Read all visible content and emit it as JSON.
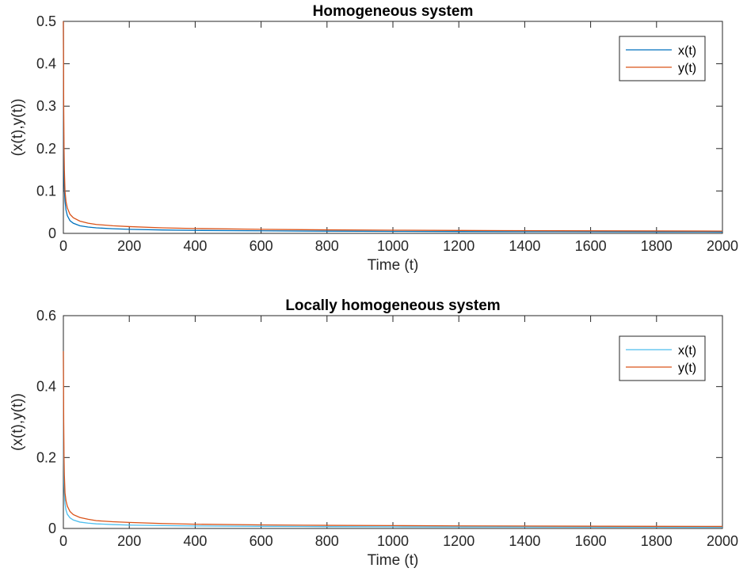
{
  "chart_data": [
    {
      "type": "line",
      "title": "Homogeneous system",
      "xlabel": "Time (t)",
      "ylabel": "(x(t),y(t))",
      "xlim": [
        0,
        2000
      ],
      "ylim": [
        0,
        0.5
      ],
      "xticks": [
        "0",
        "200",
        "400",
        "600",
        "800",
        "1000",
        "1200",
        "1400",
        "1600",
        "1800",
        "2000"
      ],
      "yticks": [
        "0",
        "0.1",
        "0.2",
        "0.3",
        "0.4",
        "0.5"
      ],
      "grid": false,
      "legend_position": "top-right",
      "series": [
        {
          "name": "x(t)",
          "color": "#0072BD",
          "x": [
            0,
            1,
            2,
            3,
            5,
            8,
            12,
            20,
            30,
            50,
            75,
            100,
            150,
            200,
            300,
            400,
            600,
            800,
            1000,
            1200,
            1500,
            1800,
            2000
          ],
          "y": [
            0.5,
            0.22,
            0.14,
            0.105,
            0.075,
            0.055,
            0.042,
            0.03,
            0.024,
            0.018,
            0.015,
            0.013,
            0.011,
            0.0095,
            0.008,
            0.007,
            0.006,
            0.0052,
            0.0047,
            0.0043,
            0.0039,
            0.0036,
            0.0034
          ]
        },
        {
          "name": "y(t)",
          "color": "#D95319",
          "x": [
            0,
            1,
            2,
            3,
            5,
            8,
            12,
            20,
            30,
            50,
            75,
            100,
            150,
            200,
            300,
            400,
            600,
            800,
            1000,
            1200,
            1500,
            1800,
            2000
          ],
          "y": [
            0.5,
            0.3,
            0.2,
            0.15,
            0.1,
            0.075,
            0.06,
            0.045,
            0.037,
            0.029,
            0.024,
            0.021,
            0.018,
            0.016,
            0.013,
            0.0115,
            0.0095,
            0.0083,
            0.0075,
            0.0069,
            0.0062,
            0.0057,
            0.0054
          ]
        }
      ]
    },
    {
      "type": "line",
      "title": "Locally homogeneous system",
      "xlabel": "Time (t)",
      "ylabel": "(x(t),y(t))",
      "xlim": [
        0,
        2000
      ],
      "ylim": [
        0,
        0.6
      ],
      "xticks": [
        "0",
        "200",
        "400",
        "600",
        "800",
        "1000",
        "1200",
        "1400",
        "1600",
        "1800",
        "2000"
      ],
      "yticks": [
        "0",
        "0.2",
        "0.4",
        "0.6"
      ],
      "grid": false,
      "legend_position": "top-right",
      "series": [
        {
          "name": "x(t)",
          "color": "#4DBEEE",
          "x": [
            0,
            1,
            2,
            3,
            5,
            8,
            12,
            20,
            30,
            50,
            75,
            100,
            150,
            200,
            300,
            400,
            600,
            800,
            1000,
            1200,
            1500,
            1800,
            2000
          ],
          "y": [
            0.5,
            0.2,
            0.13,
            0.1,
            0.07,
            0.052,
            0.04,
            0.03,
            0.024,
            0.018,
            0.015,
            0.013,
            0.011,
            0.0095,
            0.008,
            0.007,
            0.006,
            0.0052,
            0.0047,
            0.0043,
            0.0039,
            0.0036,
            0.0034
          ]
        },
        {
          "name": "y(t)",
          "color": "#D95319",
          "x": [
            0,
            1,
            2,
            3,
            5,
            8,
            12,
            20,
            30,
            50,
            75,
            100,
            150,
            200,
            300,
            400,
            600,
            800,
            1000,
            1200,
            1500,
            1800,
            2000
          ],
          "y": [
            0.5,
            0.3,
            0.2,
            0.15,
            0.1,
            0.078,
            0.063,
            0.048,
            0.039,
            0.031,
            0.026,
            0.022,
            0.019,
            0.017,
            0.014,
            0.012,
            0.01,
            0.0088,
            0.008,
            0.0073,
            0.0066,
            0.006,
            0.0057
          ]
        }
      ]
    }
  ]
}
